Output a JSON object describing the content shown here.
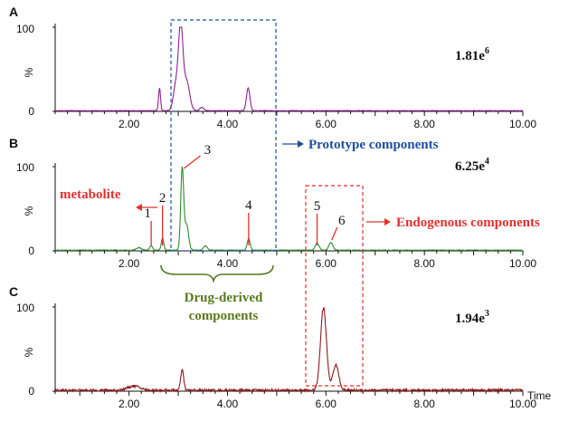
{
  "chart_data": [
    {
      "type": "line",
      "panel": "A",
      "scale_label": "1.81e",
      "scale_exp": "6",
      "ylabel": "%",
      "xlim": [
        0.5,
        10.0
      ],
      "ylim": [
        0,
        100
      ],
      "y_ticks": [
        "0",
        "100"
      ],
      "x_ticks": [
        "2.00",
        "4.00",
        "6.00",
        "8.00",
        "10.00"
      ],
      "x_tick_values": [
        2,
        4,
        6,
        8,
        10
      ],
      "color": "#8e1f8e",
      "baseline": 0.8,
      "noise": 0.3,
      "peaks": [
        {
          "t": 2.62,
          "h": 27,
          "w": 0.02
        },
        {
          "t": 2.95,
          "h": 30,
          "w": 0.05
        },
        {
          "t": 3.05,
          "h": 98,
          "w": 0.045
        },
        {
          "t": 3.17,
          "h": 35,
          "w": 0.06
        },
        {
          "t": 3.48,
          "h": 4,
          "w": 0.04
        },
        {
          "t": 4.42,
          "h": 27,
          "w": 0.035
        }
      ]
    },
    {
      "type": "line",
      "panel": "B",
      "scale_label": "6.25e",
      "scale_exp": "4",
      "ylabel": "%",
      "xlim": [
        0.5,
        10.0
      ],
      "ylim": [
        0,
        100
      ],
      "y_ticks": [
        "0",
        "100"
      ],
      "x_ticks": [
        "2.00",
        "4.00",
        "6.00",
        "8.00",
        "10.00"
      ],
      "x_tick_values": [
        2,
        4,
        6,
        8,
        10
      ],
      "color": "#2e8b2e",
      "baseline": 0.8,
      "noise": 0.4,
      "peaks": [
        {
          "t": 2.2,
          "h": 3,
          "w": 0.05
        },
        {
          "t": 2.45,
          "h": 5,
          "w": 0.03
        },
        {
          "t": 2.68,
          "h": 14,
          "w": 0.025
        },
        {
          "t": 3.08,
          "h": 97,
          "w": 0.03
        },
        {
          "t": 3.17,
          "h": 30,
          "w": 0.04
        },
        {
          "t": 3.55,
          "h": 5,
          "w": 0.04
        },
        {
          "t": 4.43,
          "h": 14,
          "w": 0.03
        },
        {
          "t": 5.82,
          "h": 8,
          "w": 0.04
        },
        {
          "t": 6.1,
          "h": 9,
          "w": 0.04
        }
      ],
      "peak_labels": [
        {
          "label": "1",
          "t": 2.45
        },
        {
          "label": "2",
          "t": 2.68
        },
        {
          "label": "3",
          "t": 3.08
        },
        {
          "label": "4",
          "t": 4.43
        },
        {
          "label": "5",
          "t": 5.82
        },
        {
          "label": "6",
          "t": 6.1
        }
      ]
    },
    {
      "type": "line",
      "panel": "C",
      "scale_label": "1.94e",
      "scale_exp": "3",
      "ylabel": "%",
      "xlim": [
        0.5,
        10.0
      ],
      "ylim": [
        0,
        100
      ],
      "y_ticks": [
        "0",
        "100"
      ],
      "x_ticks": [
        "2.00",
        "4.00",
        "6.00",
        "8.00",
        "10.00"
      ],
      "x_tick_values": [
        2,
        4,
        6,
        8,
        10
      ],
      "xlabel": "Time",
      "color": "#8b1a1a",
      "baseline": 1.2,
      "noise": 1.4,
      "peaks": [
        {
          "t": 2.1,
          "h": 5,
          "w": 0.12
        },
        {
          "t": 3.08,
          "h": 24,
          "w": 0.03
        },
        {
          "t": 5.95,
          "h": 98,
          "w": 0.06
        },
        {
          "t": 6.2,
          "h": 30,
          "w": 0.06
        }
      ]
    }
  ],
  "annotations": {
    "prototype": "Prototype components",
    "metabolite": "metabolite",
    "endogenous": "Endogenous components",
    "drug_derived_line1": "Drug-derived",
    "drug_derived_line2": "components"
  },
  "colors": {
    "blue_box": "#1f4e9e",
    "red_box": "#e03030",
    "green_brace": "#5a7a1e",
    "arrow_red": "#e03030"
  }
}
